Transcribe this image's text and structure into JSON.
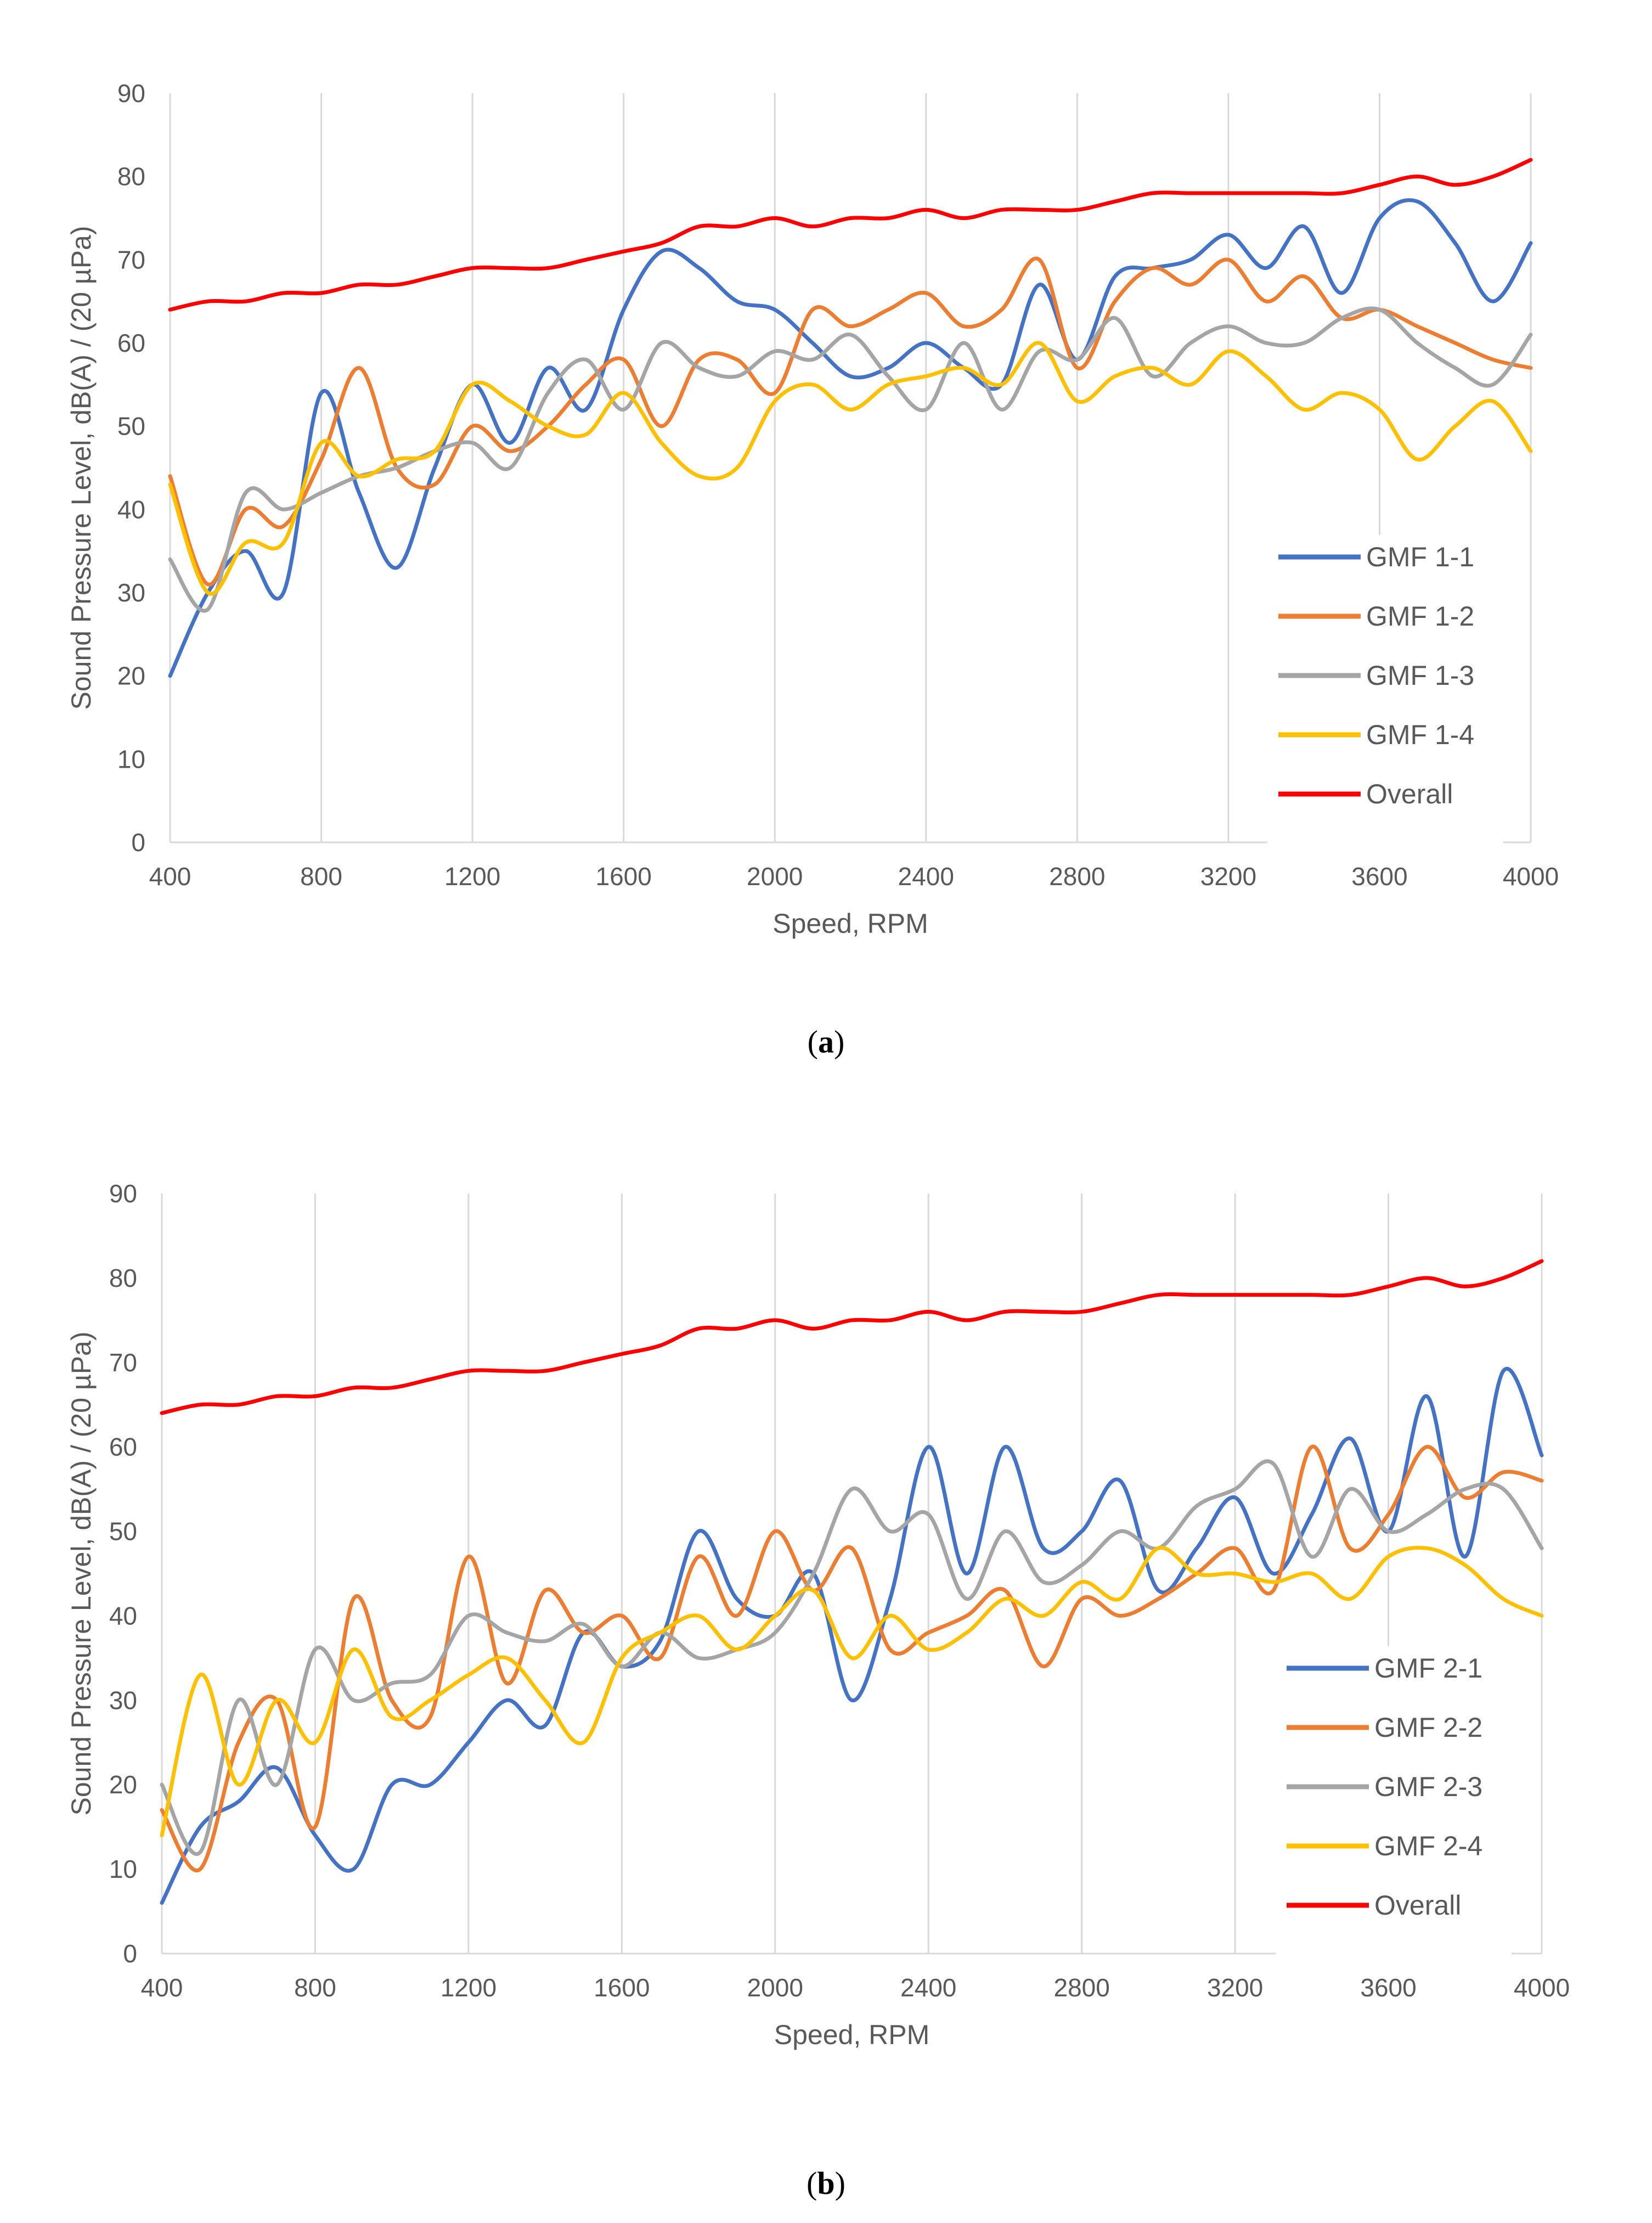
{
  "chart_data": [
    {
      "type": "line",
      "panel_label": "a",
      "xlabel": "Speed, RPM",
      "ylabel": "Sound Pressure Level, dB(A) / (20 µPa)",
      "xlim": [
        400,
        4000
      ],
      "ylim": [
        0,
        90
      ],
      "xticks": [
        400,
        800,
        1200,
        1600,
        2000,
        2400,
        2800,
        3200,
        3600,
        4000
      ],
      "yticks": [
        0,
        10,
        20,
        30,
        40,
        50,
        60,
        70,
        80,
        90
      ],
      "grid": "vertical",
      "legend_position": "bottom-right",
      "x": [
        400,
        500,
        600,
        700,
        800,
        900,
        1000,
        1100,
        1200,
        1300,
        1400,
        1500,
        1600,
        1700,
        1800,
        1900,
        2000,
        2100,
        2200,
        2300,
        2400,
        2500,
        2600,
        2700,
        2800,
        2900,
        3000,
        3100,
        3200,
        3300,
        3400,
        3500,
        3600,
        3700,
        3800,
        3900,
        4000
      ],
      "series": [
        {
          "name": "GMF 1-1",
          "color": "#4472C4",
          "values": [
            20,
            30,
            35,
            30,
            54,
            42,
            33,
            45,
            55,
            48,
            57,
            52,
            64,
            71,
            69,
            65,
            64,
            60,
            56,
            57,
            60,
            57,
            55,
            67,
            58,
            68,
            69,
            70,
            73,
            69,
            74,
            66,
            75,
            77,
            72,
            65,
            72
          ]
        },
        {
          "name": "GMF 1-2",
          "color": "#ED7D31",
          "values": [
            44,
            31,
            40,
            38,
            46,
            57,
            45,
            43,
            50,
            47,
            50,
            55,
            58,
            50,
            58,
            58,
            54,
            64,
            62,
            64,
            66,
            62,
            64,
            70,
            57,
            65,
            69,
            67,
            70,
            65,
            68,
            63,
            64,
            62,
            60,
            58,
            57
          ]
        },
        {
          "name": "GMF 1-3",
          "color": "#A5A5A5",
          "values": [
            34,
            28,
            42,
            40,
            42,
            44,
            45,
            47,
            48,
            45,
            54,
            58,
            52,
            60,
            57,
            56,
            59,
            58,
            61,
            56,
            52,
            60,
            52,
            59,
            58,
            63,
            56,
            60,
            62,
            60,
            60,
            63,
            64,
            60,
            57,
            55,
            61
          ]
        },
        {
          "name": "GMF 1-4",
          "color": "#FFC000",
          "values": [
            43,
            30,
            36,
            36,
            48,
            44,
            46,
            47,
            55,
            53,
            50,
            49,
            54,
            48,
            44,
            45,
            53,
            55,
            52,
            55,
            56,
            57,
            55,
            60,
            53,
            56,
            57,
            55,
            59,
            56,
            52,
            54,
            52,
            46,
            50,
            53,
            47
          ]
        },
        {
          "name": "Overall",
          "color": "#FF0000",
          "values": [
            64,
            65,
            65,
            66,
            66,
            67,
            67,
            68,
            69,
            69,
            69,
            70,
            71,
            72,
            74,
            74,
            75,
            74,
            75,
            75,
            76,
            75,
            76,
            76,
            76,
            77,
            78,
            78,
            78,
            78,
            78,
            78,
            79,
            80,
            79,
            80,
            82
          ]
        }
      ]
    },
    {
      "type": "line",
      "panel_label": "b",
      "xlabel": "Speed, RPM",
      "ylabel": "Sound Pressure Level, dB(A) / (20 µPa)",
      "xlim": [
        400,
        4000
      ],
      "ylim": [
        0,
        90
      ],
      "xticks": [
        400,
        800,
        1200,
        1600,
        2000,
        2400,
        2800,
        3200,
        3600,
        4000
      ],
      "yticks": [
        0,
        10,
        20,
        30,
        40,
        50,
        60,
        70,
        80,
        90
      ],
      "grid": "vertical",
      "legend_position": "bottom-right",
      "x": [
        400,
        500,
        600,
        700,
        800,
        900,
        1000,
        1100,
        1200,
        1300,
        1400,
        1500,
        1600,
        1700,
        1800,
        1900,
        2000,
        2100,
        2200,
        2300,
        2400,
        2500,
        2600,
        2700,
        2800,
        2900,
        3000,
        3100,
        3200,
        3300,
        3400,
        3500,
        3600,
        3700,
        3800,
        3900,
        4000
      ],
      "series": [
        {
          "name": "GMF 2-1",
          "color": "#4472C4",
          "values": [
            6,
            15,
            18,
            22,
            14,
            10,
            20,
            20,
            25,
            30,
            27,
            38,
            34,
            37,
            50,
            42,
            40,
            45,
            30,
            42,
            60,
            45,
            60,
            48,
            50,
            56,
            43,
            48,
            54,
            45,
            52,
            61,
            50,
            66,
            47,
            69,
            59
          ]
        },
        {
          "name": "GMF 2-2",
          "color": "#ED7D31",
          "values": [
            17,
            10,
            25,
            30,
            15,
            42,
            30,
            28,
            47,
            32,
            43,
            38,
            40,
            35,
            47,
            40,
            50,
            43,
            48,
            36,
            38,
            40,
            43,
            34,
            42,
            40,
            42,
            45,
            48,
            43,
            60,
            48,
            52,
            60,
            54,
            57,
            56
          ]
        },
        {
          "name": "GMF 2-3",
          "color": "#A5A5A5",
          "values": [
            20,
            12,
            30,
            20,
            36,
            30,
            32,
            33,
            40,
            38,
            37,
            39,
            34,
            38,
            35,
            36,
            38,
            45,
            55,
            50,
            52,
            42,
            50,
            44,
            46,
            50,
            48,
            53,
            55,
            58,
            47,
            55,
            50,
            52,
            55,
            55,
            48
          ]
        },
        {
          "name": "GMF 2-4",
          "color": "#FFC000",
          "values": [
            14,
            33,
            20,
            30,
            25,
            36,
            28,
            30,
            33,
            35,
            30,
            25,
            35,
            38,
            40,
            36,
            40,
            43,
            35,
            40,
            36,
            38,
            42,
            40,
            44,
            42,
            48,
            45,
            45,
            44,
            45,
            42,
            47,
            48,
            46,
            42,
            40
          ]
        },
        {
          "name": "Overall",
          "color": "#FF0000",
          "values": [
            64,
            65,
            65,
            66,
            66,
            67,
            67,
            68,
            69,
            69,
            69,
            70,
            71,
            72,
            74,
            74,
            75,
            74,
            75,
            75,
            76,
            75,
            76,
            76,
            76,
            77,
            78,
            78,
            78,
            78,
            78,
            78,
            79,
            80,
            79,
            80,
            82
          ]
        }
      ]
    }
  ]
}
